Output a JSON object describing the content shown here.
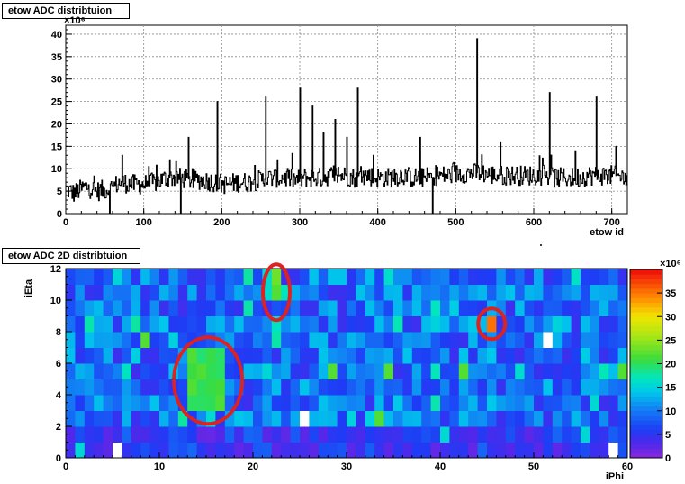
{
  "chart_data": [
    {
      "type": "line",
      "title": "etow ADC distribtuion",
      "xlabel": "etow id",
      "ylabel": "",
      "y_exponent": "×10⁶",
      "xlim": [
        0,
        720
      ],
      "ylim": [
        0,
        42
      ],
      "x_ticks": [
        0,
        100,
        200,
        300,
        400,
        500,
        600,
        700
      ],
      "y_ticks": [
        0,
        5,
        10,
        15,
        20,
        25,
        30,
        35,
        40
      ],
      "grid": true,
      "baseline_segments": [
        [
          0,
          5.5
        ],
        [
          10,
          4.5
        ],
        [
          25,
          6
        ],
        [
          40,
          5
        ],
        [
          55,
          5.5
        ],
        [
          70,
          7
        ],
        [
          85,
          6.5
        ],
        [
          100,
          6.5
        ],
        [
          115,
          7
        ],
        [
          130,
          8
        ],
        [
          145,
          8
        ],
        [
          160,
          7.5
        ],
        [
          175,
          7.5
        ],
        [
          190,
          7
        ],
        [
          205,
          6.5
        ],
        [
          220,
          7
        ],
        [
          235,
          7
        ],
        [
          250,
          7.5
        ],
        [
          265,
          8
        ],
        [
          280,
          8
        ],
        [
          295,
          7.5
        ],
        [
          310,
          8
        ],
        [
          325,
          8
        ],
        [
          340,
          8.5
        ],
        [
          355,
          8.5
        ],
        [
          370,
          8
        ],
        [
          385,
          8.5
        ],
        [
          400,
          8
        ],
        [
          415,
          8
        ],
        [
          430,
          8.5
        ],
        [
          445,
          8
        ],
        [
          460,
          8
        ],
        [
          475,
          8.5
        ],
        [
          490,
          8.5
        ],
        [
          505,
          9
        ],
        [
          520,
          9
        ],
        [
          535,
          9
        ],
        [
          550,
          8.5
        ],
        [
          565,
          8.5
        ],
        [
          580,
          8.5
        ],
        [
          595,
          8.5
        ],
        [
          610,
          8.5
        ],
        [
          625,
          8
        ],
        [
          640,
          8
        ],
        [
          655,
          8
        ],
        [
          670,
          8.5
        ],
        [
          685,
          8.5
        ],
        [
          700,
          8.5
        ],
        [
          720,
          8
        ]
      ],
      "spikes": [
        {
          "x": 72,
          "y": 13
        },
        {
          "x": 133,
          "y": 12
        },
        {
          "x": 157,
          "y": 17
        },
        {
          "x": 194,
          "y": 25
        },
        {
          "x": 256,
          "y": 26
        },
        {
          "x": 271,
          "y": 12
        },
        {
          "x": 300,
          "y": 28
        },
        {
          "x": 316,
          "y": 24
        },
        {
          "x": 330,
          "y": 18
        },
        {
          "x": 345,
          "y": 21
        },
        {
          "x": 360,
          "y": 17
        },
        {
          "x": 374,
          "y": 28
        },
        {
          "x": 394,
          "y": 13
        },
        {
          "x": 454,
          "y": 17
        },
        {
          "x": 527,
          "y": 39
        },
        {
          "x": 557,
          "y": 16
        },
        {
          "x": 620,
          "y": 27
        },
        {
          "x": 653,
          "y": 14
        },
        {
          "x": 680,
          "y": 26
        },
        {
          "x": 705,
          "y": 15
        }
      ],
      "dips": [
        {
          "x": 56,
          "y": 0
        },
        {
          "x": 147,
          "y": 0
        },
        {
          "x": 470,
          "y": 0
        }
      ]
    },
    {
      "type": "heatmap",
      "title": "etow ADC 2D distribtuion",
      "xlabel": "iPhi",
      "ylabel": "iEta",
      "xlim": [
        0,
        60
      ],
      "ylim": [
        0,
        12
      ],
      "x_ticks": [
        0,
        10,
        20,
        30,
        40,
        50,
        60
      ],
      "y_ticks": [
        0,
        2,
        4,
        6,
        8,
        10,
        12
      ],
      "colorbar": {
        "min": 0,
        "max": 40,
        "ticks": [
          0,
          5,
          10,
          15,
          20,
          25,
          30,
          35
        ],
        "exponent": "×10⁶"
      },
      "hotspots": [
        {
          "phi_range": [
            13,
            17
          ],
          "eta_range": [
            3,
            7
          ],
          "value": 22
        },
        {
          "phi_range": [
            22,
            23
          ],
          "eta_range": [
            10,
            12
          ],
          "value": 24
        },
        {
          "phi_range": [
            45,
            46
          ],
          "eta_range": [
            8,
            9
          ],
          "value": 38
        }
      ],
      "annotations": [
        {
          "shape": "ellipse",
          "color": "#dd2222",
          "phi_center": 15.2,
          "eta_center": 4.9
        },
        {
          "shape": "ellipse",
          "color": "#dd2222",
          "phi_center": 22.5,
          "eta_center": 10.5
        },
        {
          "shape": "ellipse",
          "color": "#dd2222",
          "phi_center": 45.5,
          "eta_center": 8.5
        }
      ]
    }
  ]
}
